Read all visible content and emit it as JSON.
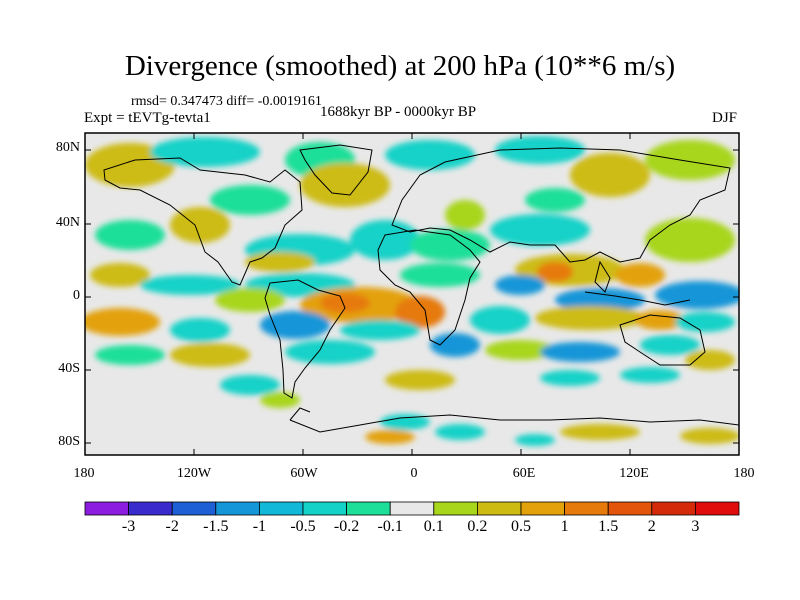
{
  "title": "Divergence (smoothed) at 200 hPa (10**6 m/s)",
  "stats": "rmsd= 0.347473 diff= -0.0019161",
  "experiment": "Expt = tEVTg-tevta1",
  "period": "1688kyr BP - 0000kyr BP",
  "season": "DJF",
  "lat_labels": [
    "80N",
    "40N",
    "0",
    "40S",
    "80S"
  ],
  "lon_labels": [
    "180",
    "120W",
    "60W",
    "0",
    "60E",
    "120E",
    "180"
  ],
  "colorbar": {
    "labels": [
      "-3",
      "-2",
      "-1.5",
      "-1",
      "-0.5",
      "-0.2",
      "-0.1",
      "0.1",
      "0.2",
      "0.5",
      "1",
      "1.5",
      "2",
      "3"
    ],
    "colors": [
      "#8c1de0",
      "#3a2ccc",
      "#1f5fd6",
      "#1596d8",
      "#12b8d8",
      "#14d2c8",
      "#1ddf9a",
      "#e8e8e8",
      "#a8d61a",
      "#cdbb12",
      "#e3a20c",
      "#e67a0a",
      "#e2550a",
      "#d52a0a",
      "#e00b0b"
    ]
  },
  "colors": {
    "background": "#e8e8e8",
    "frame": "#000000",
    "coast": "#000000"
  }
}
